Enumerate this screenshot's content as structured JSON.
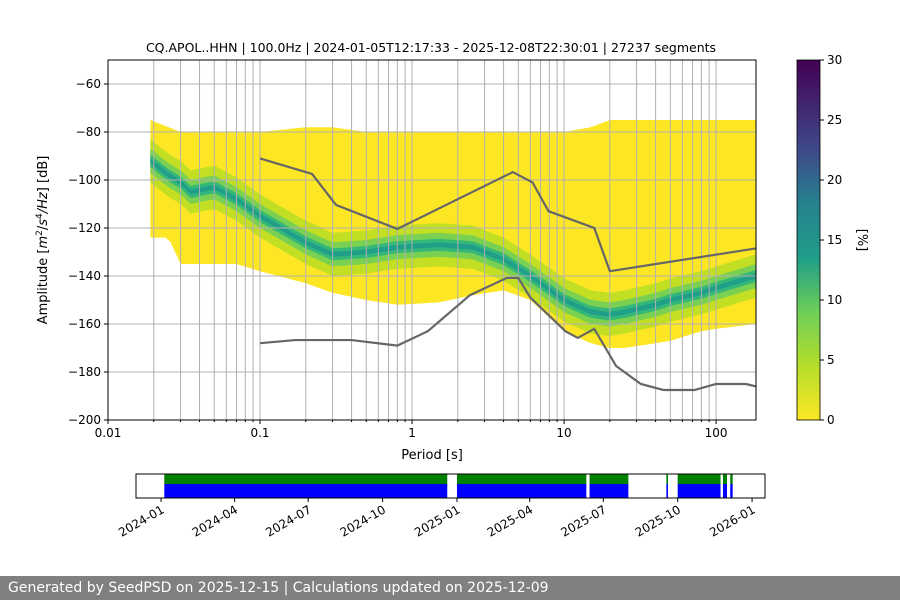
{
  "footer": "Generated by SeedPSD on 2025-12-15 | Calculations updated on 2025-12-09",
  "chart_data": {
    "type": "heatmap",
    "title": "CQ.APOL..HHN | 100.0Hz | 2024-01-05T12:17:33 - 2025-12-08T22:30:01 | 27237 segments",
    "xlabel": "Period [s]",
    "ylabel_parts": [
      "Amplitude [",
      "m",
      "2",
      "/",
      "s",
      "4",
      "/",
      "Hz",
      "] [dB]"
    ],
    "xscale": "log",
    "xlim": [
      0.01,
      183
    ],
    "ylim": [
      -200,
      -50
    ],
    "grid": true,
    "x_ticks": [
      {
        "v": 0.01,
        "label": "0.01"
      },
      {
        "v": 0.1,
        "label": "0.1"
      },
      {
        "v": 1,
        "label": "1"
      },
      {
        "v": 10,
        "label": "10"
      },
      {
        "v": 100,
        "label": "100"
      }
    ],
    "y_ticks": [
      {
        "v": -60,
        "label": "−60"
      },
      {
        "v": -80,
        "label": "−80"
      },
      {
        "v": -100,
        "label": "−100"
      },
      {
        "v": -120,
        "label": "−120"
      },
      {
        "v": -140,
        "label": "−140"
      },
      {
        "v": -160,
        "label": "−160"
      },
      {
        "v": -180,
        "label": "−180"
      },
      {
        "v": -200,
        "label": "−200"
      }
    ],
    "colorbar": {
      "label": "[%]",
      "range": [
        0,
        30
      ],
      "colormap": "viridis",
      "ticks": [
        {
          "v": 0,
          "label": "0"
        },
        {
          "v": 5,
          "label": "5"
        },
        {
          "v": 10,
          "label": "10"
        },
        {
          "v": 15,
          "label": "15"
        },
        {
          "v": 20,
          "label": "20"
        },
        {
          "v": 25,
          "label": "25"
        },
        {
          "v": 30,
          "label": "30"
        }
      ]
    },
    "density": {
      "period": [
        0.019,
        0.025,
        0.03,
        0.035,
        0.05,
        0.07,
        0.1,
        0.2,
        0.3,
        0.5,
        0.8,
        1.5,
        2.5,
        4,
        6,
        10,
        15,
        20,
        25,
        40,
        50,
        80,
        100,
        183
      ],
      "upper_db": [
        -75,
        -78,
        -80,
        -80,
        -80,
        -80,
        -80,
        -78,
        -78,
        -80,
        -80,
        -80,
        -80,
        -80,
        -80,
        -80,
        -78,
        -75,
        -75,
        -75,
        -75,
        -75,
        -75,
        -75
      ],
      "lower_db": [
        -124,
        -124,
        -135,
        -135,
        -135,
        -135,
        -138,
        -143,
        -147,
        -150,
        -152,
        -151,
        -148,
        -146,
        -150,
        -163,
        -168,
        -170,
        -170,
        -168,
        -167,
        -163,
        -162,
        -160
      ],
      "mode_db": [
        -92,
        -98,
        -101,
        -105,
        -103,
        -108,
        -115,
        -126,
        -131,
        -130,
        -128,
        -127,
        -128,
        -133,
        -140,
        -150,
        -155,
        -156,
        -155,
        -152,
        -150,
        -147,
        -145,
        -140
      ]
    },
    "series": [
      {
        "name": "",
        "color": "#666666",
        "period": [
          0.1,
          0.22,
          0.316,
          0.8,
          4.6,
          6.2,
          7.9,
          15.8,
          20,
          183
        ],
        "db": [
          -91,
          -97.5,
          -110.4,
          -120.4,
          -96.7,
          -101,
          -113,
          -120,
          -138,
          -128.5
        ]
      },
      {
        "name": "",
        "color": "#666666",
        "period": [
          0.1,
          0.17,
          0.4,
          0.8,
          1.27,
          2.4,
          4.2,
          5,
          6,
          10.2,
          12.3,
          15.8,
          22,
          32,
          45,
          72,
          100,
          157,
          183
        ],
        "db": [
          -168,
          -166.7,
          -166.7,
          -169,
          -163,
          -148,
          -140.8,
          -140.8,
          -149,
          -163,
          -165.8,
          -162,
          -177.5,
          -185,
          -187.5,
          -187.5,
          -185,
          -185,
          -186
        ]
      }
    ],
    "timeline": {
      "range": [
        "2023-12-01",
        "2026-01-17"
      ],
      "ticks": [
        "2024-01",
        "2024-04",
        "2024-07",
        "2024-10",
        "2025-01",
        "2025-04",
        "2025-07",
        "2025-10",
        "2026-01"
      ],
      "segments": [
        [
          "2024-01-05",
          "2024-12-20"
        ],
        [
          "2025-01-01",
          "2025-06-10"
        ],
        [
          "2025-06-14",
          "2025-08-01"
        ],
        [
          "2025-09-17",
          "2025-09-19"
        ],
        [
          "2025-10-01",
          "2025-11-23"
        ],
        [
          "2025-11-26",
          "2025-12-01"
        ],
        [
          "2025-12-05",
          "2025-12-08"
        ]
      ],
      "colors": {
        "available": "#008000",
        "used": "#0000ff"
      }
    }
  }
}
